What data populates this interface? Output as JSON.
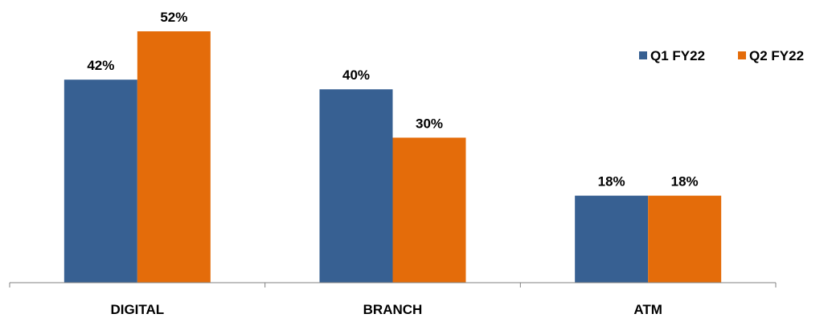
{
  "chart_data": {
    "type": "bar",
    "categories": [
      "DIGITAL",
      "BRANCH",
      "ATM"
    ],
    "series": [
      {
        "name": "Q1 FY22",
        "values": [
          42,
          40,
          18
        ],
        "color": "#376092"
      },
      {
        "name": "Q2 FY22",
        "values": [
          52,
          30,
          18
        ],
        "color": "#E46C0A"
      }
    ],
    "value_suffix": "%",
    "ylim": [
      0,
      60
    ],
    "grid": false,
    "legend_position": "top-right"
  }
}
